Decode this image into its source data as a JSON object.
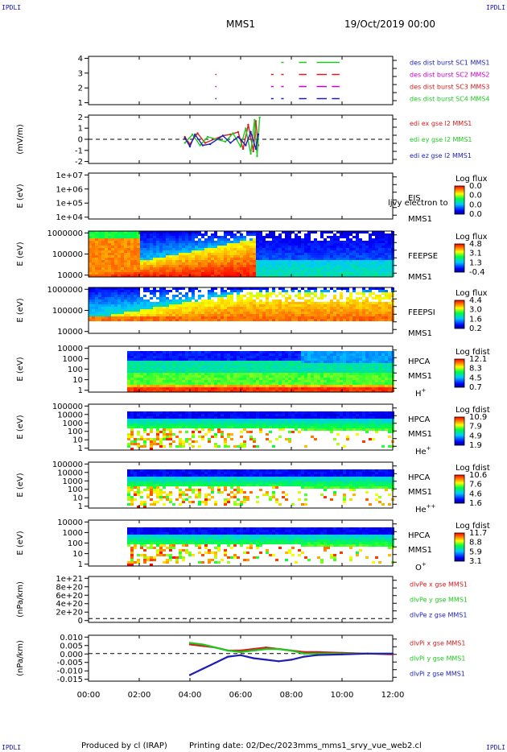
{
  "header": {
    "corner_label": "IPDLI",
    "mission": "MMS1",
    "date_time": "19/Oct/2019 00:00"
  },
  "footer": {
    "produced_by": "Produced by cl (IRAP)",
    "printing_date": "Printing date: 02/Dec/2023",
    "script": "mms_mms1_srvy_vue_web2.cl"
  },
  "time_axis": {
    "ticks": [
      "00:00",
      "02:00",
      "04:00",
      "06:00",
      "08:00",
      "10:00",
      "12:00"
    ],
    "range_hours": [
      0,
      12
    ]
  },
  "colors": {
    "blue": "#1e1eb4",
    "magenta": "#c800c8",
    "red": "#d21e1e",
    "green": "#1ec81e",
    "panel_border": "#000000"
  },
  "chart_data": [
    {
      "type": "scatter",
      "id": "burst",
      "ylim": [
        0.5,
        4.5
      ],
      "yticks": [
        "1",
        "2",
        "3",
        "4"
      ],
      "legend": [
        {
          "text": "des dist burst SC1 MMS1",
          "color": "#1e1eb4"
        },
        {
          "text": "des dist burst SC2 MMS2",
          "color": "#c800c8"
        },
        {
          "text": "des dist burst SC3 MMS3",
          "color": "#d21e1e"
        },
        {
          "text": "des dist burst SC4 MMS4",
          "color": "#1ec81e"
        }
      ],
      "series": [
        {
          "name": "des dist burst SC1 MMS1",
          "level": 1,
          "color": "#1e1eb4",
          "segments": [
            [
              5.0,
              5.05
            ],
            [
              7.2,
              7.3
            ],
            [
              7.6,
              7.7
            ],
            [
              8.3,
              8.6
            ],
            [
              9.0,
              9.4
            ],
            [
              9.6,
              9.9
            ]
          ]
        },
        {
          "name": "des dist burst SC2 MMS2",
          "level": 2,
          "color": "#c800c8",
          "segments": [
            [
              5.0,
              5.05
            ],
            [
              7.2,
              7.3
            ],
            [
              7.6,
              7.7
            ],
            [
              8.3,
              8.6
            ],
            [
              9.0,
              9.4
            ],
            [
              9.6,
              9.9
            ]
          ]
        },
        {
          "name": "des dist burst SC3 MMS3",
          "level": 3,
          "color": "#d21e1e",
          "segments": [
            [
              5.0,
              5.05
            ],
            [
              7.2,
              7.3
            ],
            [
              7.6,
              7.7
            ],
            [
              8.3,
              8.6
            ],
            [
              9.0,
              9.4
            ],
            [
              9.6,
              9.9
            ]
          ]
        },
        {
          "name": "des dist burst SC4 MMS4",
          "level": 4,
          "color": "#1ec81e",
          "segments": [
            [
              7.6,
              7.7
            ],
            [
              8.3,
              8.6
            ],
            [
              9.0,
              9.9
            ]
          ]
        }
      ]
    },
    {
      "type": "line",
      "id": "edi",
      "ylabel": "(mV/m)",
      "ylim": [
        -2,
        2
      ],
      "yticks": [
        "-2",
        "-1",
        "0",
        "1",
        "2"
      ],
      "legend": [
        {
          "text": "edi ex gse l2 MMS1",
          "color": "#d21e1e"
        },
        {
          "text": "edi ey gse l2 MMS1",
          "color": "#1ec81e"
        },
        {
          "text": "edi ez gse l2 MMS1",
          "color": "#1e1eb4"
        }
      ],
      "series": [
        {
          "name": "edi ex gse l2 MMS1",
          "color": "#d21e1e",
          "x": [
            3.8,
            4.0,
            4.3,
            4.6,
            5.3,
            5.6,
            5.9,
            6.1,
            6.3,
            6.5,
            6.6,
            6.7
          ],
          "y": [
            0.2,
            -0.4,
            0.5,
            -0.3,
            0.3,
            0.4,
            0.6,
            -0.8,
            1.2,
            -1.0,
            1.5,
            -0.5
          ]
        },
        {
          "name": "edi ey gse l2 MMS1",
          "color": "#1ec81e",
          "x": [
            3.8,
            4.1,
            4.4,
            4.7,
            5.4,
            5.7,
            6.0,
            6.2,
            6.4,
            6.55,
            6.65,
            6.75
          ],
          "y": [
            -0.3,
            0.4,
            -0.5,
            0.2,
            -0.2,
            0.5,
            -0.6,
            0.9,
            -1.2,
            1.6,
            -1.4,
            1.8
          ]
        },
        {
          "name": "edi ez gse l2 MMS1",
          "color": "#1e1eb4",
          "x": [
            3.8,
            4.0,
            4.2,
            4.5,
            4.8,
            5.3,
            5.6,
            5.9,
            6.2,
            6.4,
            6.6,
            6.7
          ],
          "y": [
            0.1,
            -0.6,
            0.4,
            -0.5,
            -0.4,
            0.3,
            -0.3,
            0.2,
            -0.5,
            0.6,
            -0.8,
            0.4
          ]
        }
      ]
    },
    {
      "type": "heatmap",
      "id": "eis",
      "ylabel": "E (eV)",
      "yticks": [
        "1e+04",
        "1e+05",
        "1e+06",
        "1e+07"
      ],
      "label_lines": [
        "EIS",
        "MMS1"
      ],
      "overlay_text": "ljvy electron to",
      "colorbar": {
        "title": "Log flux",
        "ticks": [
          "0.0",
          "0.0",
          "0.0",
          "0.0"
        ]
      },
      "has_data": false
    },
    {
      "type": "heatmap",
      "id": "feepse",
      "ylabel": "E (eV)",
      "yticks": [
        "10000",
        "100000",
        "1000000"
      ],
      "label_lines": [
        "FEEPSE",
        "MMS1"
      ],
      "colorbar": {
        "title": "Log flux",
        "ticks": [
          "4.8",
          "3.1",
          "1.3",
          "-0.4"
        ]
      },
      "has_data": true
    },
    {
      "type": "heatmap",
      "id": "feepsi",
      "ylabel": "E (eV)",
      "yticks": [
        "10000",
        "100000",
        "1000000"
      ],
      "label_lines": [
        "FEEPSI",
        "MMS1"
      ],
      "colorbar": {
        "title": "Log flux",
        "ticks": [
          "4.4",
          "3.0",
          "1.6",
          "0.2"
        ]
      },
      "has_data": true
    },
    {
      "type": "heatmap",
      "id": "hpca_h",
      "ylabel": "E (eV)",
      "yticks": [
        "1",
        "10",
        "100",
        "1000",
        "10000"
      ],
      "label_lines": [
        "HPCA",
        "MMS1"
      ],
      "species": "H",
      "species_sup": "+",
      "colorbar": {
        "title": "Log fdist",
        "ticks": [
          "12.1",
          "8.3",
          "4.5",
          "0.7"
        ]
      },
      "has_data": true
    },
    {
      "type": "heatmap",
      "id": "hpca_he",
      "ylabel": "E (eV)",
      "yticks": [
        "1",
        "10",
        "100",
        "1000",
        "10000",
        "100000"
      ],
      "label_lines": [
        "HPCA",
        "MMS1"
      ],
      "species": "He",
      "species_sup": "+",
      "colorbar": {
        "title": "Log fdist",
        "ticks": [
          "10.9",
          "7.9",
          "4.9",
          "1.9"
        ]
      },
      "has_data": true
    },
    {
      "type": "heatmap",
      "id": "hpca_hepp",
      "ylabel": "E (eV)",
      "yticks": [
        "1",
        "10",
        "100",
        "1000",
        "10000",
        "100000"
      ],
      "label_lines": [
        "HPCA",
        "MMS1"
      ],
      "species": "He",
      "species_sup": "++",
      "colorbar": {
        "title": "Log fdist",
        "ticks": [
          "10.6",
          "7.6",
          "4.6",
          "1.6"
        ]
      },
      "has_data": true
    },
    {
      "type": "heatmap",
      "id": "hpca_o",
      "ylabel": "E (eV)",
      "yticks": [
        "1",
        "10",
        "100",
        "1000",
        "10000"
      ],
      "label_lines": [
        "HPCA",
        "MMS1"
      ],
      "species": "O",
      "species_sup": "+",
      "colorbar": {
        "title": "Log fdist",
        "ticks": [
          "11.7",
          "8.8",
          "5.9",
          "3.1"
        ]
      },
      "has_data": true
    },
    {
      "type": "line",
      "id": "dpe",
      "ylabel": "(nPa/km)",
      "ylim": [
        -1e+20,
        1.1e+21
      ],
      "yticks": [
        "0",
        "2e+20",
        "4e+20",
        "6e+20",
        "8e+20",
        "1e+21"
      ],
      "legend": [
        {
          "text": "dlvPe x gse MMS1",
          "color": "#d21e1e"
        },
        {
          "text": "dlvPe y gse MMS1",
          "color": "#1ec81e"
        },
        {
          "text": "dlvPe z gse MMS1",
          "color": "#1e1eb4"
        }
      ],
      "series": []
    },
    {
      "type": "line",
      "id": "dpi",
      "ylabel": "(nPa/km)",
      "ylim": [
        -0.018,
        0.012
      ],
      "yticks": [
        "-0.015",
        "-0.010",
        "-0.005",
        "0.000",
        "0.005",
        "0.010"
      ],
      "legend": [
        {
          "text": "dlvPi x gse MMS1",
          "color": "#d21e1e"
        },
        {
          "text": "dlvPi y gse MMS1",
          "color": "#1ec81e"
        },
        {
          "text": "dlvPi z gse MMS1",
          "color": "#1e1eb4"
        }
      ],
      "series": [
        {
          "name": "dlvPi x gse MMS1",
          "color": "#d21e1e",
          "x": [
            4.0,
            4.5,
            5.0,
            5.5,
            6.0,
            6.5,
            7.0,
            7.5,
            8.0,
            8.5,
            9.0,
            10.0,
            11.0,
            12.0
          ],
          "y": [
            0.006,
            0.005,
            0.004,
            0.002,
            0.002,
            0.003,
            0.004,
            0.003,
            0.002,
            0.001,
            0.001,
            0.0005,
            0.0,
            -0.0005
          ]
        },
        {
          "name": "dlvPi y gse MMS1",
          "color": "#1ec81e",
          "x": [
            4.0,
            4.5,
            5.0,
            5.5,
            6.0,
            6.5,
            7.0,
            7.5,
            8.0,
            8.5,
            9.0,
            10.0,
            11.0,
            12.0
          ],
          "y": [
            0.007,
            0.006,
            0.004,
            0.002,
            0.001,
            0.002,
            0.003,
            0.003,
            0.002,
            0.0,
            0.0,
            0.0,
            0.0,
            0.0
          ]
        },
        {
          "name": "dlvPi z gse MMS1",
          "color": "#1e1eb4",
          "x": [
            4.0,
            4.5,
            5.0,
            5.5,
            6.0,
            6.5,
            7.0,
            7.5,
            8.0,
            8.5,
            9.0,
            10.0,
            11.0,
            12.0
          ],
          "y": [
            -0.014,
            -0.01,
            -0.006,
            -0.002,
            -0.001,
            -0.003,
            -0.004,
            -0.005,
            -0.004,
            -0.002,
            -0.001,
            -0.0005,
            0.0,
            0.0
          ]
        }
      ]
    }
  ]
}
